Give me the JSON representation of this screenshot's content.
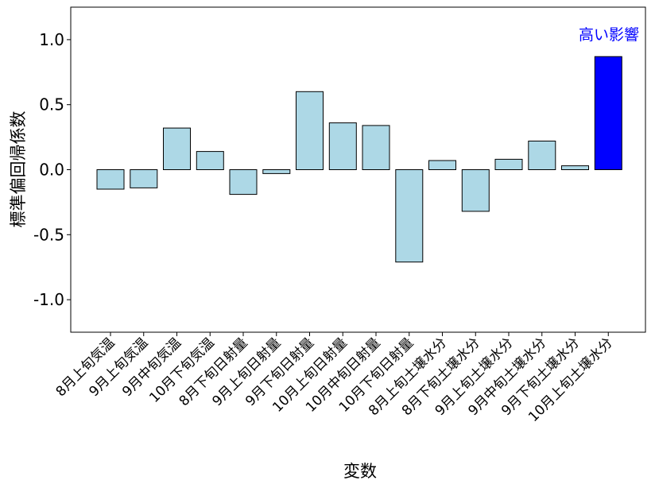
{
  "chart_data": {
    "type": "bar",
    "title": "",
    "xlabel": "変数",
    "ylabel": "標準偏回帰係数",
    "ylim": [
      -1.25,
      1.25
    ],
    "yticks": [
      "1.0",
      "0.5",
      "0.0",
      "-0.5",
      "-1.0"
    ],
    "ytick_values": [
      1.0,
      0.5,
      0.0,
      -0.5,
      -1.0
    ],
    "categories": [
      "8月上旬気温",
      "9月上旬気温",
      "9月中旬気温",
      "10月下旬気温",
      "8月下旬日射量",
      "9月上旬日射量",
      "9月下旬日射量",
      "10月上旬日射量",
      "10月中旬日射量",
      "10月下旬日射量",
      "8月上旬土壌水分",
      "8月下旬土壌水分",
      "9月上旬土壌水分",
      "9月中旬土壌水分",
      "9月下旬土壌水分",
      "10月上旬土壌水分"
    ],
    "values": [
      -0.15,
      -0.14,
      0.32,
      0.14,
      -0.19,
      -0.03,
      0.6,
      0.36,
      0.34,
      -0.71,
      0.07,
      -0.32,
      0.08,
      0.22,
      0.03,
      0.87
    ],
    "colors": {
      "default": "#add8e6",
      "highlight": "#0000ff",
      "edge": "#000000",
      "annotation": "#0000ff"
    },
    "highlight_index": 15,
    "annotation": "高い影響",
    "grid": false,
    "legend": "none"
  }
}
